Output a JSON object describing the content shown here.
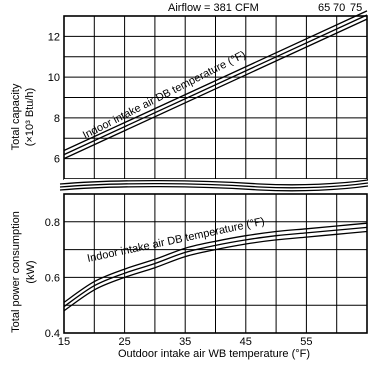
{
  "chart_data": [
    {
      "type": "line",
      "title": "Airflow = 381 CFM",
      "ylabel_line1": "Total capacity",
      "ylabel_line2": "(×10³ Btu/h)",
      "annotation": "Indoor intake air DB temperature (°F)",
      "ylim": [
        5,
        13
      ],
      "yticks": [
        "6",
        "8",
        "10",
        "12"
      ],
      "series": [
        {
          "name": "65",
          "x": [
            15,
            65
          ],
          "y": [
            6.0,
            12.85
          ]
        },
        {
          "name": "70",
          "x": [
            15,
            65
          ],
          "y": [
            6.2,
            13.05
          ]
        },
        {
          "name": "75",
          "x": [
            15,
            65
          ],
          "y": [
            6.4,
            13.25
          ]
        }
      ],
      "grid": true
    },
    {
      "type": "line",
      "ylabel_line1": "Total power consumption",
      "ylabel_line2": "(kW)",
      "annotation": "Indoor intake air DB temperature (°F)",
      "xlabel": "Outdoor intake air WB temperature (°F)",
      "xlim": [
        15,
        65
      ],
      "xticks": [
        "15",
        "25",
        "35",
        "45",
        "55"
      ],
      "ylim": [
        0.4,
        0.9
      ],
      "yticks": [
        "0.4",
        "0.6",
        "0.8"
      ],
      "series": [
        {
          "name": "65",
          "x": [
            15,
            20,
            25,
            30,
            35,
            40,
            45,
            50,
            55,
            60,
            65
          ],
          "y": [
            0.48,
            0.555,
            0.6,
            0.635,
            0.675,
            0.7,
            0.72,
            0.735,
            0.745,
            0.755,
            0.765
          ]
        },
        {
          "name": "70",
          "x": [
            15,
            20,
            25,
            30,
            35,
            40,
            45,
            50,
            55,
            60,
            65
          ],
          "y": [
            0.495,
            0.57,
            0.615,
            0.65,
            0.69,
            0.715,
            0.735,
            0.75,
            0.76,
            0.77,
            0.78
          ]
        },
        {
          "name": "75",
          "x": [
            15,
            20,
            25,
            30,
            35,
            40,
            45,
            50,
            55,
            60,
            65
          ],
          "y": [
            0.51,
            0.585,
            0.63,
            0.665,
            0.705,
            0.73,
            0.75,
            0.765,
            0.775,
            0.785,
            0.795
          ]
        }
      ],
      "grid": true
    }
  ],
  "series_labels": [
    "65",
    "70",
    "75"
  ]
}
